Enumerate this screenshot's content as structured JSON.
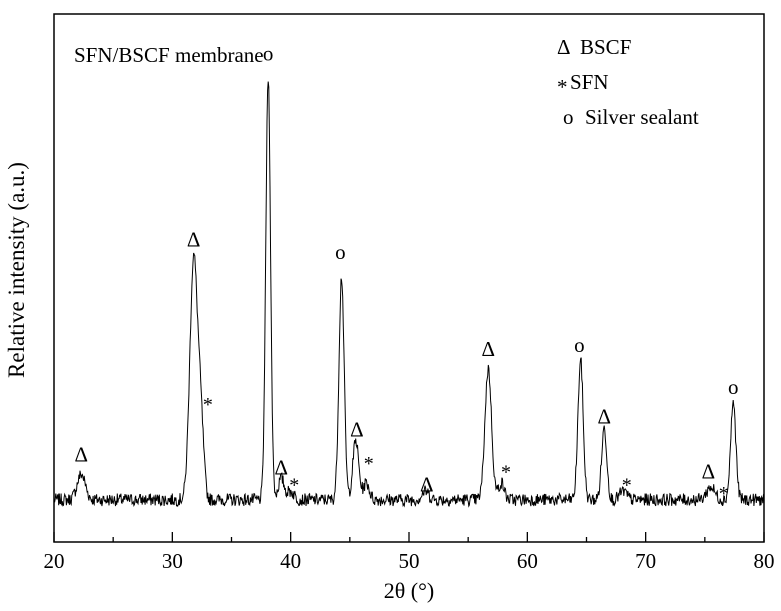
{
  "chart_data": {
    "type": "line",
    "title": "SFN/BSCF membrane",
    "xlabel": "2θ (°)",
    "ylabel": "Relative intensity (a.u.)",
    "xlim": [
      20,
      80
    ],
    "xticks": [
      20,
      30,
      40,
      50,
      60,
      70,
      80
    ],
    "y_tick_labels_shown": false,
    "grid": false,
    "legend_position": "top-right",
    "legend": [
      {
        "symbol": "Δ",
        "label": "BSCF"
      },
      {
        "symbol": "*",
        "label": "SFN"
      },
      {
        "symbol": "o",
        "label": "Silver sealant"
      }
    ],
    "baseline": 10,
    "noise_amplitude": 1.5,
    "peaks": [
      {
        "x": 22.3,
        "height": 6,
        "width": 0.35
      },
      {
        "x": 31.8,
        "height": 57,
        "width": 0.32
      },
      {
        "x": 32.4,
        "height": 18,
        "width": 0.25
      },
      {
        "x": 38.1,
        "height": 100,
        "width": 0.2
      },
      {
        "x": 39.2,
        "height": 5,
        "width": 0.25
      },
      {
        "x": 40.0,
        "height": 2,
        "width": 0.3
      },
      {
        "x": 44.3,
        "height": 53,
        "width": 0.22
      },
      {
        "x": 45.5,
        "height": 14,
        "width": 0.25
      },
      {
        "x": 46.4,
        "height": 4,
        "width": 0.25
      },
      {
        "x": 51.4,
        "height": 2,
        "width": 0.3
      },
      {
        "x": 56.7,
        "height": 31,
        "width": 0.28
      },
      {
        "x": 57.8,
        "height": 4,
        "width": 0.25
      },
      {
        "x": 64.5,
        "height": 33,
        "width": 0.22
      },
      {
        "x": 66.5,
        "height": 17,
        "width": 0.22
      },
      {
        "x": 68.1,
        "height": 2,
        "width": 0.3
      },
      {
        "x": 75.5,
        "height": 3,
        "width": 0.35
      },
      {
        "x": 77.4,
        "height": 23,
        "width": 0.22
      }
    ],
    "annotations": [
      {
        "text": "Δ",
        "x": 22.3,
        "y": 19
      },
      {
        "text": "Δ",
        "x": 31.8,
        "y": 70
      },
      {
        "text": "*",
        "x": 33.0,
        "y": 31
      },
      {
        "text": "o",
        "x": 38.1,
        "y": 114
      },
      {
        "text": "Δ",
        "x": 39.2,
        "y": 16
      },
      {
        "text": "*",
        "x": 40.3,
        "y": 12
      },
      {
        "text": "o",
        "x": 44.2,
        "y": 67
      },
      {
        "text": "Δ",
        "x": 45.6,
        "y": 25
      },
      {
        "text": "*",
        "x": 46.6,
        "y": 17
      },
      {
        "text": "Δ",
        "x": 51.5,
        "y": 12
      },
      {
        "text": "Δ",
        "x": 56.7,
        "y": 44
      },
      {
        "text": "*",
        "x": 58.2,
        "y": 15
      },
      {
        "text": "o",
        "x": 64.4,
        "y": 45
      },
      {
        "text": "Δ",
        "x": 66.5,
        "y": 28
      },
      {
        "text": "*",
        "x": 68.4,
        "y": 12
      },
      {
        "text": "Δ",
        "x": 75.3,
        "y": 15
      },
      {
        "text": "*",
        "x": 76.6,
        "y": 10
      },
      {
        "text": "o",
        "x": 77.4,
        "y": 35
      }
    ]
  }
}
